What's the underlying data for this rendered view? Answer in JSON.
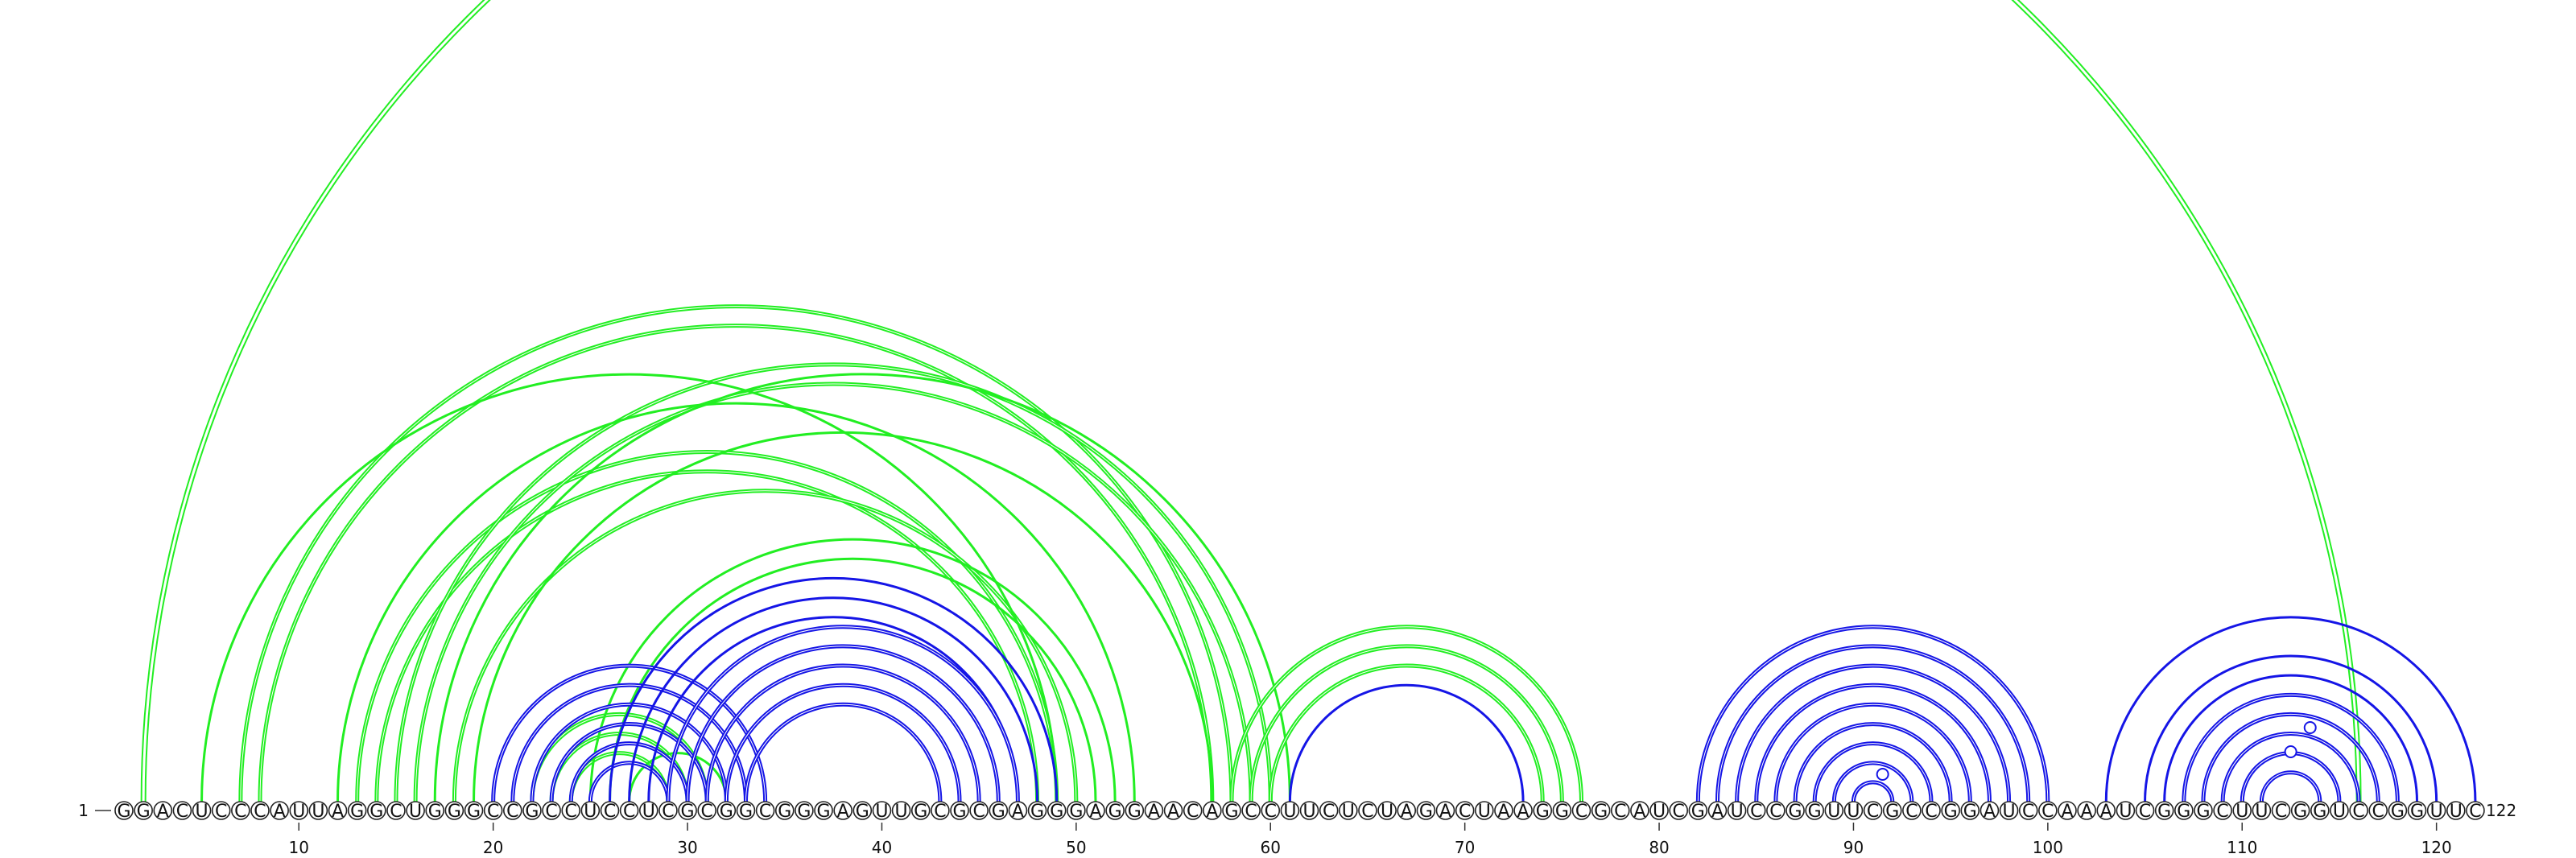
{
  "diagram": {
    "sequence": "GGACUCCCAUUAGGCUGGGCCGCCUCCUCGCGGCGGGAGUUGCGCGAGGGAGGAACAGCCUUCUCUAGACUAAGGCGCAUCGAUCCGGUUCGCCGGAUCCAAAUCGGGCUUCGGUCCGGUUC",
    "length": 122,
    "start_label": "1",
    "end_label": "122",
    "tick_positions": [
      10,
      20,
      30,
      40,
      50,
      60,
      70,
      80,
      90,
      100,
      110,
      120
    ],
    "colors": {
      "blue": "#1515e6",
      "green": "#22ee22"
    },
    "arc_groups": [
      {
        "color": "green",
        "width": 7,
        "double": true,
        "pairs": [
          [
            2,
            116
          ]
        ]
      },
      {
        "color": "green",
        "width": 5,
        "double": true,
        "pairs": [
          [
            7,
            58
          ],
          [
            8,
            57
          ],
          [
            13,
            49
          ],
          [
            14,
            48
          ],
          [
            15,
            60
          ],
          [
            16,
            59
          ],
          [
            18,
            50
          ]
        ]
      },
      {
        "color": "green",
        "width": 3,
        "double": false,
        "pairs": [
          [
            5,
            49
          ],
          [
            12,
            53
          ],
          [
            17,
            61
          ],
          [
            19,
            57
          ]
        ]
      },
      {
        "color": "green",
        "width": 5,
        "double": true,
        "pairs": [
          [
            58,
            76
          ],
          [
            59,
            75
          ],
          [
            60,
            74
          ]
        ]
      },
      {
        "color": "green",
        "width": 5,
        "double": true,
        "pairs": [
          [
            22,
            31
          ],
          [
            23,
            30
          ],
          [
            24,
            29
          ]
        ]
      },
      {
        "color": "green",
        "width": 3,
        "double": false,
        "pairs": [
          [
            25,
            52
          ],
          [
            26,
            51
          ],
          [
            27,
            32
          ]
        ]
      },
      {
        "color": "blue",
        "width": 5,
        "double": true,
        "pairs": [
          [
            20,
            34
          ],
          [
            21,
            33
          ],
          [
            22,
            32
          ],
          [
            23,
            31
          ],
          [
            24,
            30
          ],
          [
            25,
            29
          ]
        ]
      },
      {
        "color": "blue",
        "width": 3,
        "double": false,
        "pairs": [
          [
            26,
            49
          ],
          [
            27,
            48
          ],
          [
            28,
            47
          ]
        ]
      },
      {
        "color": "blue",
        "width": 5,
        "double": true,
        "pairs": [
          [
            29,
            47
          ],
          [
            30,
            46
          ],
          [
            31,
            45
          ],
          [
            32,
            44
          ],
          [
            33,
            43
          ]
        ]
      },
      {
        "color": "blue",
        "width": 3,
        "double": false,
        "pairs": [
          [
            61,
            73
          ]
        ]
      },
      {
        "color": "blue",
        "width": 5,
        "double": true,
        "pairs": [
          [
            82,
            100
          ],
          [
            83,
            99
          ],
          [
            84,
            98
          ],
          [
            85,
            97
          ],
          [
            86,
            96
          ],
          [
            87,
            95
          ],
          [
            88,
            94
          ],
          [
            89,
            93
          ],
          [
            90,
            92
          ]
        ]
      },
      {
        "color": "blue",
        "width": 3,
        "double": false,
        "pairs": [
          [
            103,
            122
          ],
          [
            105,
            120
          ],
          [
            106,
            119
          ]
        ]
      },
      {
        "color": "blue",
        "width": 5,
        "double": true,
        "pairs": [
          [
            107,
            118
          ],
          [
            108,
            117
          ],
          [
            109,
            116
          ],
          [
            110,
            115
          ],
          [
            111,
            114
          ]
        ]
      }
    ],
    "unpaired_markers": [
      91,
      112,
      113
    ]
  }
}
